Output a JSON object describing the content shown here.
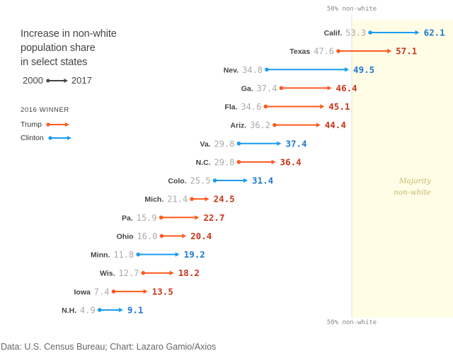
{
  "chart_data": {
    "type": "arrow-dumbbell",
    "title": "Increase in non-white population share in select states",
    "title_lines": [
      "Increase in non-white",
      "population share",
      "in select states"
    ],
    "year_key": {
      "start": "2000",
      "end": "2017"
    },
    "legend_title": "2016 WINNER",
    "legend": [
      {
        "name": "Trump",
        "color": "#ff5a1f",
        "text_color": "#c8361a"
      },
      {
        "name": "Clinton",
        "color": "#1a9cf0",
        "text_color": "#1f77d0"
      }
    ],
    "threshold": {
      "value": 50,
      "label": "50% non-white",
      "band_label_lines": [
        "Majority",
        "non-white"
      ],
      "band_color": "#fffde6"
    },
    "x_unit": "percent non-white",
    "states": [
      {
        "state": "Calif.",
        "y2000": 53.3,
        "y2017": 62.1,
        "winner": "Clinton"
      },
      {
        "state": "Texas",
        "y2000": 47.6,
        "y2017": 57.1,
        "winner": "Trump"
      },
      {
        "state": "Nev.",
        "y2000": 34.8,
        "y2017": 49.5,
        "winner": "Clinton"
      },
      {
        "state": "Ga.",
        "y2000": 37.4,
        "y2017": 46.4,
        "winner": "Trump"
      },
      {
        "state": "Fla.",
        "y2000": 34.6,
        "y2017": 45.1,
        "winner": "Trump"
      },
      {
        "state": "Ariz.",
        "y2000": 36.2,
        "y2017": 44.4,
        "winner": "Trump"
      },
      {
        "state": "Va.",
        "y2000": 29.8,
        "y2017": 37.4,
        "winner": "Clinton"
      },
      {
        "state": "N.C.",
        "y2000": 29.8,
        "y2017": 36.4,
        "winner": "Trump"
      },
      {
        "state": "Colo.",
        "y2000": 25.5,
        "y2017": 31.4,
        "winner": "Clinton"
      },
      {
        "state": "Mich.",
        "y2000": 21.4,
        "y2017": 24.5,
        "winner": "Trump"
      },
      {
        "state": "Pa.",
        "y2000": 15.9,
        "y2017": 22.7,
        "winner": "Trump"
      },
      {
        "state": "Ohio",
        "y2000": 16.0,
        "y2017": 20.4,
        "winner": "Trump"
      },
      {
        "state": "Minn.",
        "y2000": 11.8,
        "y2017": 19.2,
        "winner": "Clinton"
      },
      {
        "state": "Wis.",
        "y2000": 12.7,
        "y2017": 18.2,
        "winner": "Trump"
      },
      {
        "state": "Iowa",
        "y2000": 7.4,
        "y2017": 13.5,
        "winner": "Trump"
      },
      {
        "state": "N.H.",
        "y2000": 4.9,
        "y2017": 9.1,
        "winner": "Clinton"
      }
    ]
  },
  "source": "Data: U.S. Census Bureau; Chart: Lazaro Gamio/Axios"
}
